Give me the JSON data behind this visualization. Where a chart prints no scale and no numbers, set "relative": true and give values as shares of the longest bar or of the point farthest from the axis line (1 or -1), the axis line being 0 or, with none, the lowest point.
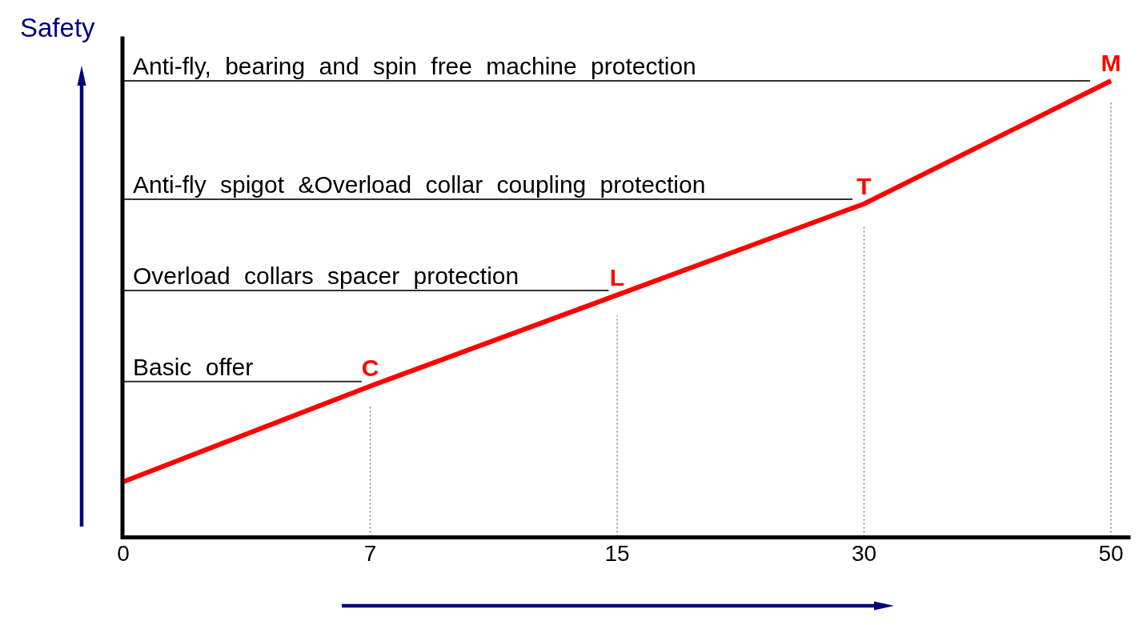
{
  "chart_data": {
    "type": "line",
    "relative": true,
    "ylabel": "Safety",
    "categories": [
      "0",
      "7",
      "15",
      "30",
      "50"
    ],
    "series": [
      {
        "color": "#ff0000",
        "values": [
          0.12,
          0.33,
          0.53,
          0.73,
          1
        ]
      }
    ],
    "ref_lines": [
      {
        "axis": "y",
        "value": 0.34,
        "label": "Basic offer",
        "color": "#333333"
      },
      {
        "axis": "y",
        "value": 0.54,
        "label": "Overload collars spacer protection",
        "color": "#333333"
      },
      {
        "axis": "y",
        "value": 0.74,
        "label": "Anti-fly spigot &Overload collar coupling protection",
        "color": "#333333"
      },
      {
        "axis": "y",
        "value": 1,
        "label": "Anti-fly, bearing and spin free machine protection",
        "color": "#333333"
      },
      {
        "axis": "x",
        "value": "7",
        "color": "#808080",
        "line_style": "dotted"
      },
      {
        "axis": "x",
        "value": "15",
        "color": "#808080",
        "line_style": "dotted"
      },
      {
        "axis": "x",
        "value": "30",
        "color": "#808080",
        "line_style": "dotted"
      },
      {
        "axis": "x",
        "value": "50",
        "color": "#808080",
        "line_style": "dotted"
      }
    ],
    "annotations": [
      {
        "text": "C",
        "x": "7",
        "y": 0.33
      },
      {
        "text": "L",
        "x": "15",
        "y": 0.53
      },
      {
        "text": "T",
        "x": "30",
        "y": 0.73
      },
      {
        "text": "M",
        "x": "50",
        "y": 1
      }
    ]
  }
}
